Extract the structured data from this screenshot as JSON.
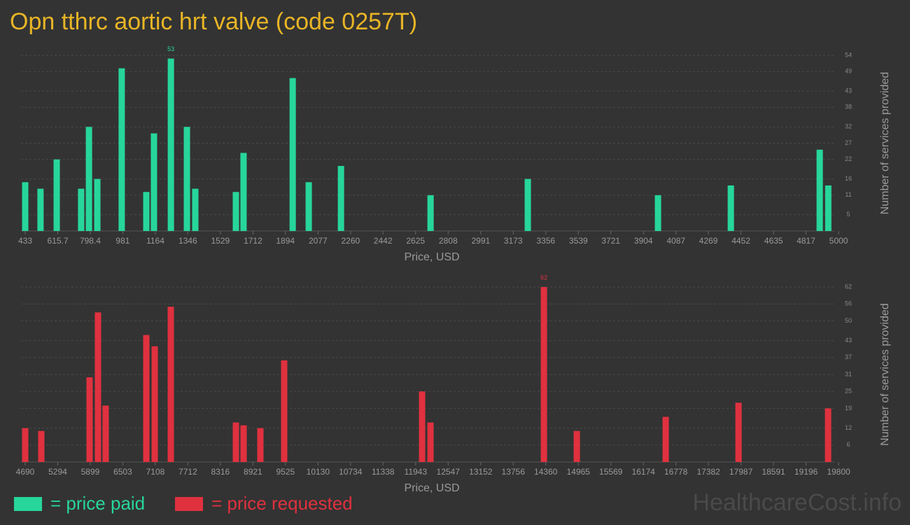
{
  "title": "Opn tthrc aortic hrt valve (code 0257T)",
  "watermark": "HealthcareCost.info",
  "chart_data": [
    {
      "type": "bar",
      "xlabel": "Price, USD",
      "ylabel": "Number of services provided",
      "x": [
        433,
        519,
        610,
        747,
        791,
        838,
        975,
        1113,
        1156,
        1251,
        1341,
        1388,
        1616,
        1659,
        1935,
        2025,
        2206,
        2709,
        3255,
        3986,
        4395,
        4894,
        4942
      ],
      "series": [
        {
          "name": "= price paid",
          "color": "#27d69a",
          "values": [
            15,
            13,
            22,
            13,
            32,
            16,
            50,
            12,
            30,
            53,
            32,
            13,
            12,
            24,
            47,
            15,
            20,
            11,
            16,
            11,
            14,
            25,
            14
          ]
        }
      ],
      "xlim": [
        433,
        5000
      ],
      "xticks": [
        433,
        615.7,
        798.4,
        981,
        1164,
        1346,
        1529,
        1712,
        1894,
        2077,
        2260,
        2442,
        2625,
        2808,
        2991,
        3173,
        3356,
        3539,
        3721,
        3904,
        4087,
        4269,
        4452,
        4635,
        4817,
        5000
      ],
      "ylim": [
        0,
        54
      ],
      "yticks": [
        5,
        11,
        16,
        22,
        27,
        32,
        38,
        43,
        49,
        54
      ],
      "grid": true
    },
    {
      "type": "bar",
      "xlabel": "Price, USD",
      "ylabel": "Number of services provided",
      "x": [
        4690,
        4989,
        5886,
        6042,
        6185,
        6940,
        7096,
        7395,
        8604,
        8747,
        9059,
        9501,
        12063,
        12219,
        14326,
        14937,
        16588,
        17941,
        19605
      ],
      "series": [
        {
          "name": "= price requested",
          "color": "#e0313f",
          "values": [
            12,
            11,
            30,
            53,
            20,
            45,
            41,
            55,
            14,
            13,
            12,
            36,
            25,
            14,
            62,
            11,
            16,
            21,
            19
          ]
        }
      ],
      "xlim": [
        4690,
        19800
      ],
      "xticks": [
        4690,
        5294,
        5899,
        6503,
        7108,
        7712,
        8316,
        8921,
        9525,
        10130,
        10734,
        11338,
        11943,
        12547,
        13152,
        13756,
        14360,
        14965,
        15569,
        16174,
        16778,
        17382,
        17987,
        18591,
        19196,
        19800
      ],
      "ylim": [
        0,
        62
      ],
      "yticks": [
        6,
        12,
        19,
        25,
        31,
        37,
        43,
        50,
        56,
        62
      ],
      "grid": true
    }
  ]
}
